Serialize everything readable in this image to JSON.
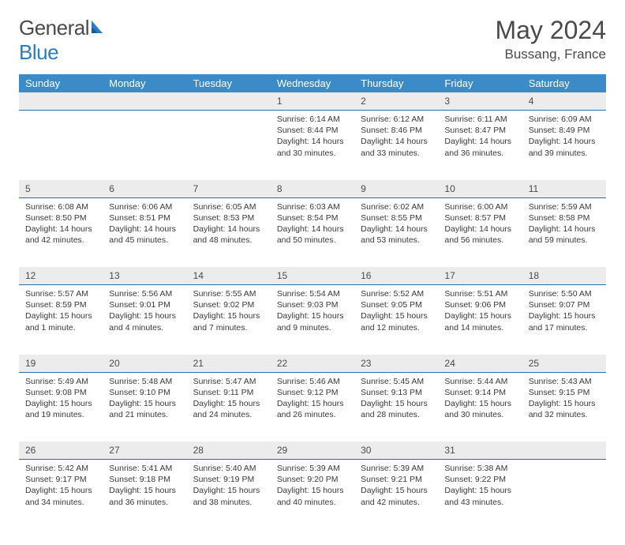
{
  "brand": {
    "general": "General",
    "blue": "Blue"
  },
  "title": "May 2024",
  "location": "Bussang, France",
  "headerColor": "#3b8bc8",
  "dayBarColor": "#ececec",
  "dayLineColor": "#2b6fa8",
  "daysOfWeek": [
    "Sunday",
    "Monday",
    "Tuesday",
    "Wednesday",
    "Thursday",
    "Friday",
    "Saturday"
  ],
  "weeks": [
    [
      null,
      null,
      null,
      {
        "n": "1",
        "sr": "6:14 AM",
        "ss": "8:44 PM",
        "dl": "14 hours and 30 minutes."
      },
      {
        "n": "2",
        "sr": "6:12 AM",
        "ss": "8:46 PM",
        "dl": "14 hours and 33 minutes."
      },
      {
        "n": "3",
        "sr": "6:11 AM",
        "ss": "8:47 PM",
        "dl": "14 hours and 36 minutes."
      },
      {
        "n": "4",
        "sr": "6:09 AM",
        "ss": "8:49 PM",
        "dl": "14 hours and 39 minutes."
      }
    ],
    [
      {
        "n": "5",
        "sr": "6:08 AM",
        "ss": "8:50 PM",
        "dl": "14 hours and 42 minutes."
      },
      {
        "n": "6",
        "sr": "6:06 AM",
        "ss": "8:51 PM",
        "dl": "14 hours and 45 minutes."
      },
      {
        "n": "7",
        "sr": "6:05 AM",
        "ss": "8:53 PM",
        "dl": "14 hours and 48 minutes."
      },
      {
        "n": "8",
        "sr": "6:03 AM",
        "ss": "8:54 PM",
        "dl": "14 hours and 50 minutes."
      },
      {
        "n": "9",
        "sr": "6:02 AM",
        "ss": "8:55 PM",
        "dl": "14 hours and 53 minutes."
      },
      {
        "n": "10",
        "sr": "6:00 AM",
        "ss": "8:57 PM",
        "dl": "14 hours and 56 minutes."
      },
      {
        "n": "11",
        "sr": "5:59 AM",
        "ss": "8:58 PM",
        "dl": "14 hours and 59 minutes."
      }
    ],
    [
      {
        "n": "12",
        "sr": "5:57 AM",
        "ss": "8:59 PM",
        "dl": "15 hours and 1 minute."
      },
      {
        "n": "13",
        "sr": "5:56 AM",
        "ss": "9:01 PM",
        "dl": "15 hours and 4 minutes."
      },
      {
        "n": "14",
        "sr": "5:55 AM",
        "ss": "9:02 PM",
        "dl": "15 hours and 7 minutes."
      },
      {
        "n": "15",
        "sr": "5:54 AM",
        "ss": "9:03 PM",
        "dl": "15 hours and 9 minutes."
      },
      {
        "n": "16",
        "sr": "5:52 AM",
        "ss": "9:05 PM",
        "dl": "15 hours and 12 minutes."
      },
      {
        "n": "17",
        "sr": "5:51 AM",
        "ss": "9:06 PM",
        "dl": "15 hours and 14 minutes."
      },
      {
        "n": "18",
        "sr": "5:50 AM",
        "ss": "9:07 PM",
        "dl": "15 hours and 17 minutes."
      }
    ],
    [
      {
        "n": "19",
        "sr": "5:49 AM",
        "ss": "9:08 PM",
        "dl": "15 hours and 19 minutes."
      },
      {
        "n": "20",
        "sr": "5:48 AM",
        "ss": "9:10 PM",
        "dl": "15 hours and 21 minutes."
      },
      {
        "n": "21",
        "sr": "5:47 AM",
        "ss": "9:11 PM",
        "dl": "15 hours and 24 minutes."
      },
      {
        "n": "22",
        "sr": "5:46 AM",
        "ss": "9:12 PM",
        "dl": "15 hours and 26 minutes."
      },
      {
        "n": "23",
        "sr": "5:45 AM",
        "ss": "9:13 PM",
        "dl": "15 hours and 28 minutes."
      },
      {
        "n": "24",
        "sr": "5:44 AM",
        "ss": "9:14 PM",
        "dl": "15 hours and 30 minutes."
      },
      {
        "n": "25",
        "sr": "5:43 AM",
        "ss": "9:15 PM",
        "dl": "15 hours and 32 minutes."
      }
    ],
    [
      {
        "n": "26",
        "sr": "5:42 AM",
        "ss": "9:17 PM",
        "dl": "15 hours and 34 minutes."
      },
      {
        "n": "27",
        "sr": "5:41 AM",
        "ss": "9:18 PM",
        "dl": "15 hours and 36 minutes."
      },
      {
        "n": "28",
        "sr": "5:40 AM",
        "ss": "9:19 PM",
        "dl": "15 hours and 38 minutes."
      },
      {
        "n": "29",
        "sr": "5:39 AM",
        "ss": "9:20 PM",
        "dl": "15 hours and 40 minutes."
      },
      {
        "n": "30",
        "sr": "5:39 AM",
        "ss": "9:21 PM",
        "dl": "15 hours and 42 minutes."
      },
      {
        "n": "31",
        "sr": "5:38 AM",
        "ss": "9:22 PM",
        "dl": "15 hours and 43 minutes."
      },
      null
    ]
  ],
  "labels": {
    "sunrise": "Sunrise:",
    "sunset": "Sunset:",
    "daylight": "Daylight:"
  }
}
